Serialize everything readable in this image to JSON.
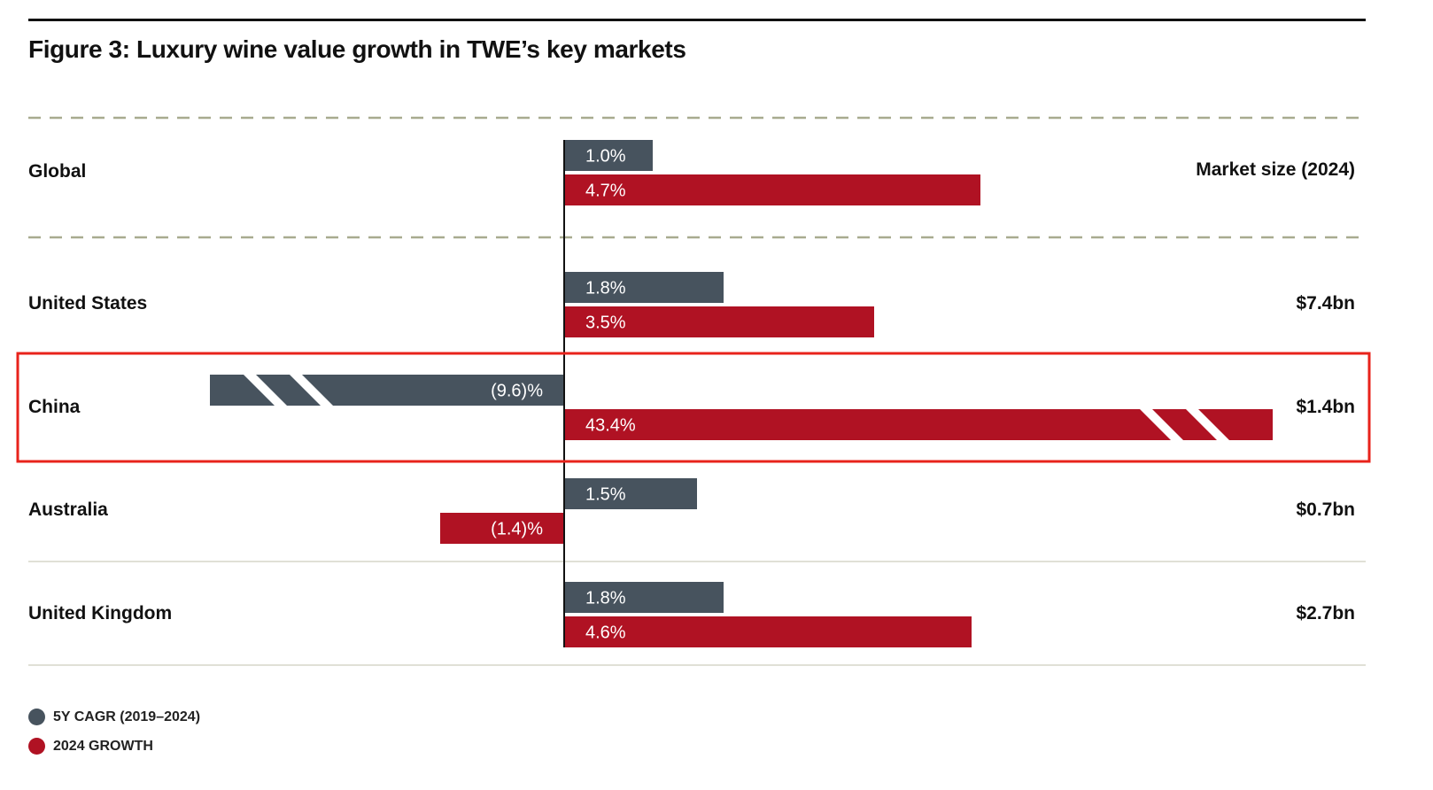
{
  "title": "Figure 3:  Luxury wine value growth in TWE’s key markets",
  "market_size_header": "Market size (2024)",
  "colors": {
    "cagr": "#47535e",
    "growth": "#b01223",
    "highlight": "#e8231b",
    "divider": "#d5d6c8",
    "dash": "#a8ab8f"
  },
  "legend": [
    {
      "label": "5Y CAGR (2019–2024)",
      "color": "#47535e"
    },
    {
      "label": "2024 GROWTH",
      "color": "#b01223"
    }
  ],
  "rows": [
    {
      "label": "Global",
      "market_size": "",
      "cagr": 1.0,
      "cagr_label": "1.0%",
      "growth": 4.7,
      "growth_label": "4.7%"
    },
    {
      "label": "United States",
      "market_size": "$7.4bn",
      "cagr": 1.8,
      "cagr_label": "1.8%",
      "growth": 3.5,
      "growth_label": "3.5%"
    },
    {
      "label": "China",
      "market_size": "$1.4bn",
      "cagr": -9.6,
      "cagr_label": "(9.6)%",
      "growth": 43.4,
      "growth_label": "43.4%",
      "highlighted": true,
      "axis_break": true
    },
    {
      "label": "Australia",
      "market_size": "$0.7bn",
      "cagr": 1.5,
      "cagr_label": "1.5%",
      "growth": -1.4,
      "growth_label": "(1.4)%"
    },
    {
      "label": "United Kingdom",
      "market_size": "$2.7bn",
      "cagr": 1.8,
      "cagr_label": "1.8%",
      "growth": 4.6,
      "growth_label": "4.6%"
    }
  ],
  "chart_data": {
    "type": "bar",
    "orientation": "horizontal",
    "title": "Figure 3:  Luxury wine value growth in TWE’s key markets",
    "categories": [
      "Global",
      "United States",
      "China",
      "Australia",
      "United Kingdom"
    ],
    "series": [
      {
        "name": "5Y CAGR (2019–2024)",
        "values": [
          1.0,
          1.8,
          -9.6,
          1.5,
          1.8
        ]
      },
      {
        "name": "2024 GROWTH",
        "values": [
          4.7,
          3.5,
          43.4,
          -1.4,
          4.6
        ]
      }
    ],
    "unit": "%",
    "legend_position": "bottom-left",
    "grid": false,
    "notes": "China bars are drawn with axis breaks (truncated)"
  }
}
